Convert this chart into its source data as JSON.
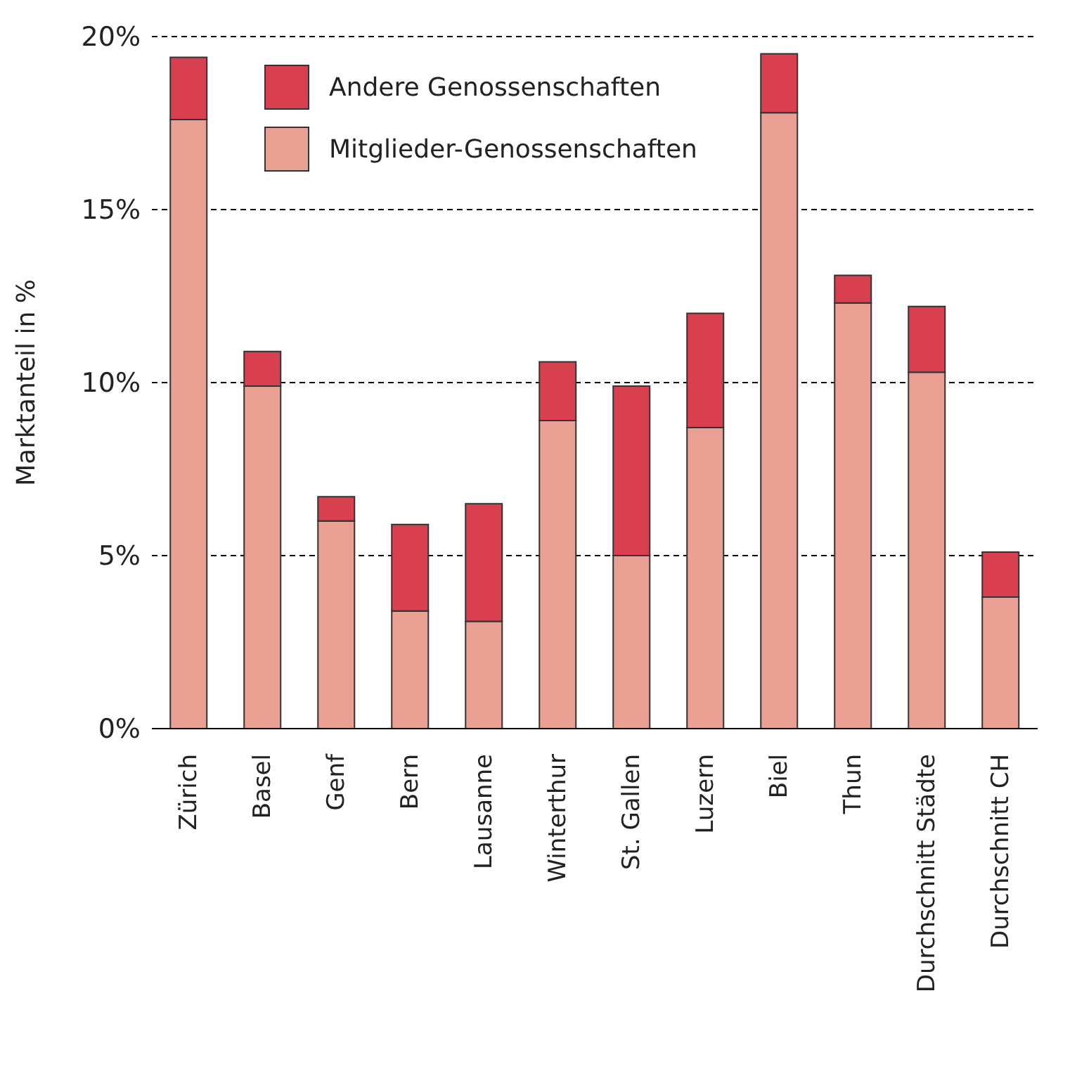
{
  "chart_data": {
    "type": "bar",
    "stacked": true,
    "ylabel": "Marktanteil in %",
    "categories": [
      "Zürich",
      "Basel",
      "Genf",
      "Bern",
      "Lausanne",
      "Winterthur",
      "St. Gallen",
      "Luzern",
      "Biel",
      "Thun",
      "Durchschnitt Städte",
      "Durchschnitt CH"
    ],
    "series": [
      {
        "name": "Mitglieder-Genossenschaften",
        "color": "#e9a093",
        "values": [
          17.6,
          9.9,
          6.0,
          3.4,
          3.1,
          8.9,
          5.0,
          8.7,
          17.8,
          12.3,
          10.3,
          3.8
        ]
      },
      {
        "name": "Andere Genossenschaften",
        "color": "#d9404f",
        "values": [
          1.8,
          1.0,
          0.7,
          2.5,
          3.4,
          1.7,
          4.9,
          3.3,
          1.7,
          0.8,
          1.9,
          1.3
        ]
      }
    ],
    "ylim": [
      0,
      20
    ],
    "yticks": [
      {
        "value": 0,
        "label": "0%"
      },
      {
        "value": 5,
        "label": "5%"
      },
      {
        "value": 10,
        "label": "10%"
      },
      {
        "value": 15,
        "label": "15%"
      },
      {
        "value": 20,
        "label": "20%"
      }
    ],
    "grid": "y",
    "legend": "top left"
  }
}
